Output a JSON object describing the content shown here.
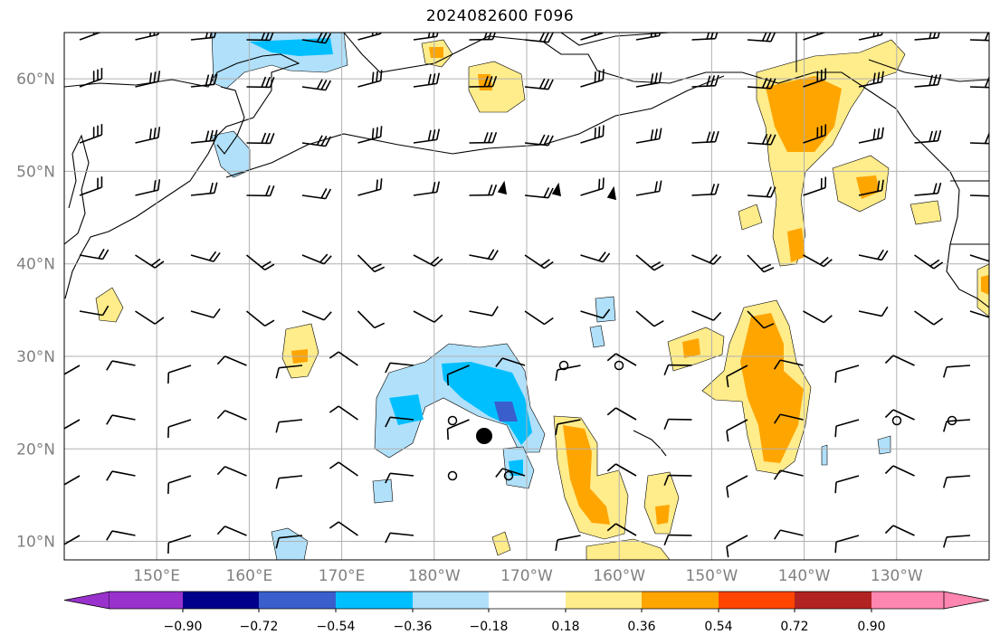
{
  "title": "2024082600 F096",
  "map": {
    "lon_range": [
      140,
      240
    ],
    "lat_range": [
      8,
      65
    ],
    "lat_labels": [
      "10°N",
      "20°N",
      "30°N",
      "40°N",
      "50°N",
      "60°N"
    ],
    "lon_labels": [
      "150°E",
      "160°E",
      "170°E",
      "180°W",
      "170°W",
      "160°W",
      "150°W",
      "140°W",
      "130°W"
    ]
  },
  "colorbar": {
    "tick_labels": [
      "−0.90",
      "−0.72",
      "−0.54",
      "−0.36",
      "−0.18",
      "0.18",
      "0.36",
      "0.54",
      "0.72",
      "0.90"
    ],
    "colors": [
      "#9932cc",
      "#00008b",
      "#3a5fcd",
      "#00bfff",
      "#b0e0fa",
      "#ffffff",
      "#ffec8b",
      "#ffa500",
      "#ff4500",
      "#b22222",
      "#ff86b0"
    ]
  },
  "colors": {
    "grid": "#b0b0b0",
    "coast": "#000000",
    "axis_text": "#808080"
  }
}
